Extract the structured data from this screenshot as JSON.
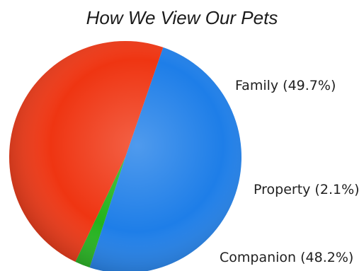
{
  "chart_data": {
    "type": "pie",
    "title": "How We View Our Pets",
    "slices": [
      {
        "name": "Family",
        "value": 49.7,
        "label": "Family (49.7%)",
        "color": "#1e7ee8"
      },
      {
        "name": "Property",
        "value": 2.1,
        "label": "Property (2.1%)",
        "color": "#22b31c"
      },
      {
        "name": "Companion",
        "value": 48.2,
        "label": "Companion (48.2%)",
        "color": "#ef3512"
      }
    ]
  }
}
